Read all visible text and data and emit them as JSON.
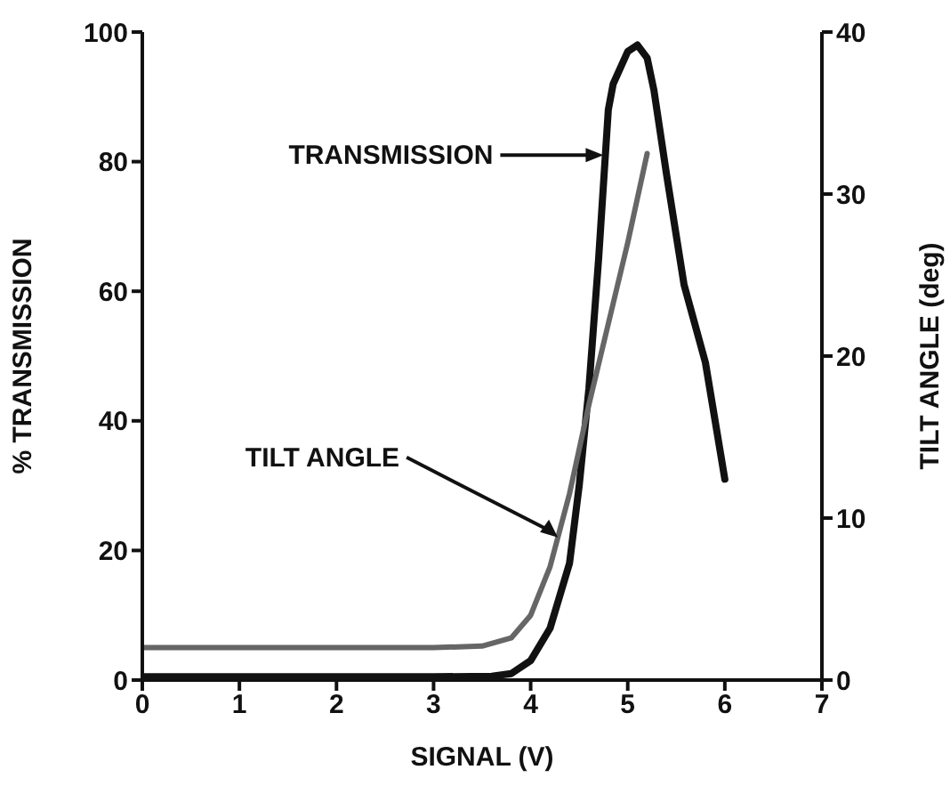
{
  "chart_data": {
    "type": "line",
    "xlabel": "SIGNAL (V)",
    "ylabel": "% TRANSMISSION",
    "y2label": "TILT ANGLE (deg)",
    "xlim": [
      0,
      7
    ],
    "xticks": [
      0,
      1,
      2,
      3,
      4,
      5,
      6,
      7
    ],
    "ylim": [
      0,
      100
    ],
    "yticks": [
      0,
      20,
      40,
      60,
      80,
      100
    ],
    "y2lim": [
      0,
      40
    ],
    "y2ticks": [
      0,
      10,
      20,
      30,
      40
    ],
    "grid": false,
    "legend": false,
    "marker": "none",
    "line_style": "solid",
    "series": [
      {
        "color": "#111111",
        "x": [
          0,
          1,
          2,
          3,
          3.6,
          3.8,
          4.0,
          4.2,
          4.4,
          4.5,
          4.6,
          4.7,
          4.8,
          4.85,
          5.0,
          5.1,
          5.2,
          5.27,
          5.4,
          5.58,
          5.8,
          6.0
        ],
        "values": [
          0.5,
          0.5,
          0.5,
          0.5,
          0.6,
          1,
          3,
          8,
          18,
          30,
          45,
          65,
          88,
          92,
          97,
          98,
          96,
          91,
          78,
          61,
          49,
          31
        ]
      },
      {
        "color": "#666666",
        "axis": "y2",
        "x": [
          0,
          1,
          2,
          3,
          3.5,
          3.8,
          4.0,
          4.2,
          4.4,
          4.6,
          4.8,
          5.0,
          5.2
        ],
        "values": [
          2,
          2,
          2,
          2,
          2.1,
          2.6,
          4,
          7,
          11.5,
          17,
          22,
          27,
          32.5
        ]
      }
    ],
    "annotations": [
      "TRANSMISSION",
      "TILT ANGLE"
    ]
  }
}
